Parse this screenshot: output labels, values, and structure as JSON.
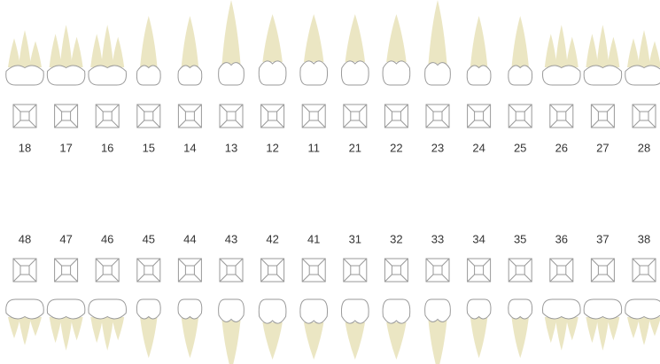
{
  "upper_teeth": [
    "18",
    "17",
    "16",
    "15",
    "14",
    "13",
    "12",
    "11",
    "21",
    "22",
    "23",
    "24",
    "25",
    "26",
    "27",
    "28"
  ],
  "lower_teeth": [
    "48",
    "47",
    "46",
    "45",
    "44",
    "43",
    "42",
    "41",
    "31",
    "32",
    "33",
    "34",
    "35",
    "36",
    "37",
    "38"
  ]
}
